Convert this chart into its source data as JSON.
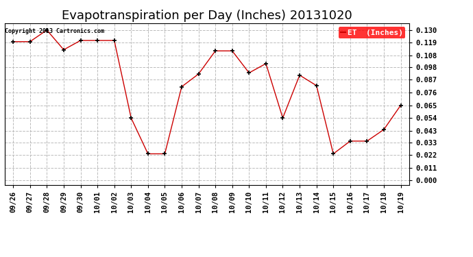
{
  "title": "Evapotranspiration per Day (Inches) 20131020",
  "copyright_text": "Copyright 2013 Cartronics.com",
  "legend_label": "ET  (Inches)",
  "legend_bg": "#ff0000",
  "legend_fg": "#ffffff",
  "x_labels": [
    "09/26",
    "09/27",
    "09/28",
    "09/29",
    "09/30",
    "10/01",
    "10/02",
    "10/03",
    "10/04",
    "10/05",
    "10/06",
    "10/07",
    "10/08",
    "10/09",
    "10/10",
    "10/11",
    "10/12",
    "10/13",
    "10/14",
    "10/15",
    "10/16",
    "10/17",
    "10/18",
    "10/19"
  ],
  "y_values": [
    0.12,
    0.12,
    0.13,
    0.113,
    0.121,
    0.121,
    0.121,
    0.054,
    0.023,
    0.023,
    0.081,
    0.092,
    0.112,
    0.112,
    0.093,
    0.101,
    0.054,
    0.091,
    0.082,
    0.023,
    0.034,
    0.034,
    0.044,
    0.065
  ],
  "y_ticks": [
    0.0,
    0.011,
    0.022,
    0.033,
    0.043,
    0.054,
    0.065,
    0.076,
    0.087,
    0.098,
    0.108,
    0.119,
    0.13
  ],
  "line_color": "#cc0000",
  "marker": "+",
  "marker_color": "#000000",
  "grid_color": "#bbbbbb",
  "bg_color": "#ffffff",
  "title_fontsize": 13,
  "tick_fontsize": 7.5,
  "ylim": [
    -0.004,
    0.136
  ]
}
